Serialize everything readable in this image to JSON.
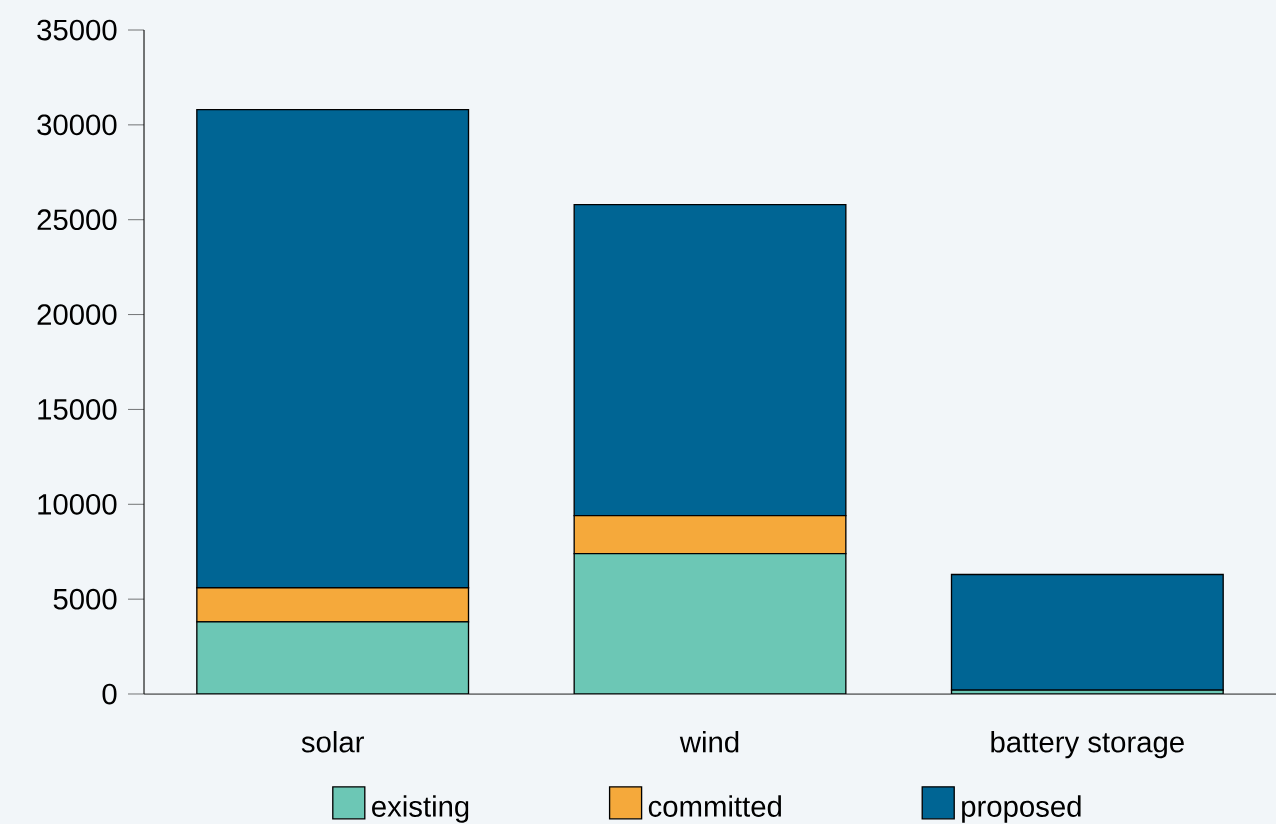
{
  "chart_data": {
    "type": "bar",
    "stacked": true,
    "categories": [
      "solar",
      "wind",
      "battery storage"
    ],
    "series": [
      {
        "name": "existing",
        "color": "#6cc7b5",
        "values": [
          3800,
          7400,
          200
        ]
      },
      {
        "name": "committed",
        "color": "#f5a93b",
        "values": [
          1800,
          2000,
          0
        ]
      },
      {
        "name": "proposed",
        "color": "#006594",
        "values": [
          25200,
          16400,
          6100
        ]
      }
    ],
    "ylim": [
      0,
      35000
    ],
    "yticks": [
      0,
      5000,
      10000,
      15000,
      20000,
      25000,
      30000,
      35000
    ],
    "legend": "bottom"
  }
}
